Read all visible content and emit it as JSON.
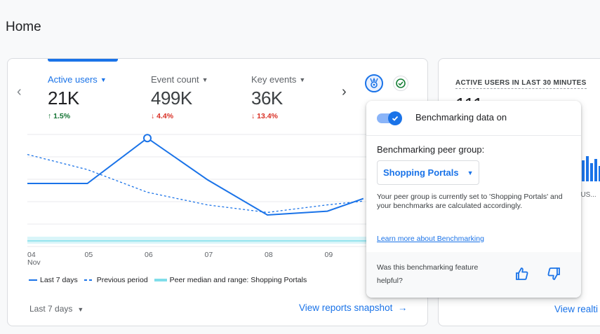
{
  "page": {
    "title": "Home"
  },
  "metrics": [
    {
      "label": "Active users",
      "value": "21K",
      "change": "1.5%",
      "direction": "up"
    },
    {
      "label": "Event count",
      "value": "499K",
      "change": "4.4%",
      "direction": "down"
    },
    {
      "label": "Key events",
      "value": "36K",
      "change": "13.4%",
      "direction": "down"
    }
  ],
  "chart_data": {
    "type": "line",
    "categories": [
      "04",
      "05",
      "06",
      "07",
      "08",
      "09"
    ],
    "x_sublabel_first": "Nov",
    "series": [
      {
        "name": "Last 7 days",
        "style": "solid",
        "color": "#1a73e8",
        "values": [
          5,
          5,
          8.6,
          5.3,
          2.5,
          2.8
        ]
      },
      {
        "name": "Previous period",
        "style": "dashed",
        "color": "#1a73e8",
        "values": [
          7.3,
          6.1,
          4.3,
          3.3,
          2.7,
          3.3
        ]
      }
    ],
    "range_band": {
      "name": "Peer median and range: Shopping Portals",
      "color": "#80deea"
    },
    "ylim": [
      0,
      10
    ],
    "grid": true
  },
  "legend": {
    "current": "Last 7 days",
    "previous": "Previous period",
    "peer": "Peer median and range: Shopping Portals"
  },
  "footer": {
    "date_range": "Last 7 days",
    "view_snapshot": "View reports snapshot"
  },
  "realtime": {
    "title": "ACTIVE USERS IN LAST 30 MINUTES",
    "value": "111",
    "sub_label": "E US...",
    "view_link": "View realti"
  },
  "popover": {
    "toggle_label": "Benchmarking data on",
    "peer_group_label": "Benchmarking peer group:",
    "peer_group_value": "Shopping Portals",
    "description": "Your peer group is currently set to 'Shopping Portals' and your benchmarks are calculated accordingly.",
    "learn_more": "Learn more about Benchmarking",
    "feedback_question": "Was this benchmarking feature helpful?"
  },
  "colors": {
    "accent": "#1a73e8",
    "up": "#137333",
    "down": "#d93025",
    "band": "#80deea"
  },
  "icons": [
    "chevron-left-icon",
    "chevron-right-icon",
    "benchmark-icon",
    "check-circle-icon",
    "thumbs-up-icon",
    "thumbs-down-icon",
    "arrow-right-icon"
  ]
}
